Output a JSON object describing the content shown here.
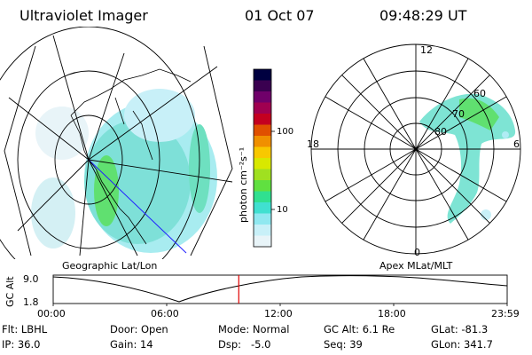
{
  "header": {
    "instrument": "Ultraviolet Imager",
    "date": "01 Oct 07",
    "time": "09:48:29 UT"
  },
  "left_panel": {
    "label": "Geographic Lat/Lon"
  },
  "right_panel": {
    "label": "Apex MLat/MLT",
    "mlt_labels": {
      "top": "12",
      "left": "18",
      "right": "6",
      "bottom": "0"
    },
    "lat_labels": [
      "60",
      "70",
      "80"
    ]
  },
  "colorbar": {
    "unit_label": "photon cm⁻²s⁻¹",
    "tick_labels": [
      "100",
      "10"
    ],
    "colors": [
      "#000040",
      "#3a0050",
      "#70006a",
      "#a00050",
      "#c40020",
      "#e05000",
      "#f09000",
      "#f8c800",
      "#d8e800",
      "#a0e020",
      "#60e040",
      "#30e090",
      "#40e0d0",
      "#90e8f0",
      "#c8f0f8",
      "#e8f4f8"
    ]
  },
  "timeline": {
    "y_axis_label": "GC Alt",
    "y_ticks": [
      "9.0",
      "1.8"
    ],
    "x_ticks": [
      "00:00",
      "06:00",
      "12:00",
      "18:00",
      "23:59"
    ],
    "current_time_hours": 9.81
  },
  "info": {
    "row1": {
      "filter": "Flt: LBHL",
      "door": "Door: Open",
      "mode": "Mode: Normal",
      "gc_alt": "GC Alt: 6.1 Re",
      "glat": "GLat: -81.3"
    },
    "row2": {
      "ip": "IP: 36.0",
      "gain": "Gain: 14",
      "dsp": "Dsp:   -5.0",
      "seq": "Seq: 39",
      "glon": "GLon: 341.7"
    }
  }
}
